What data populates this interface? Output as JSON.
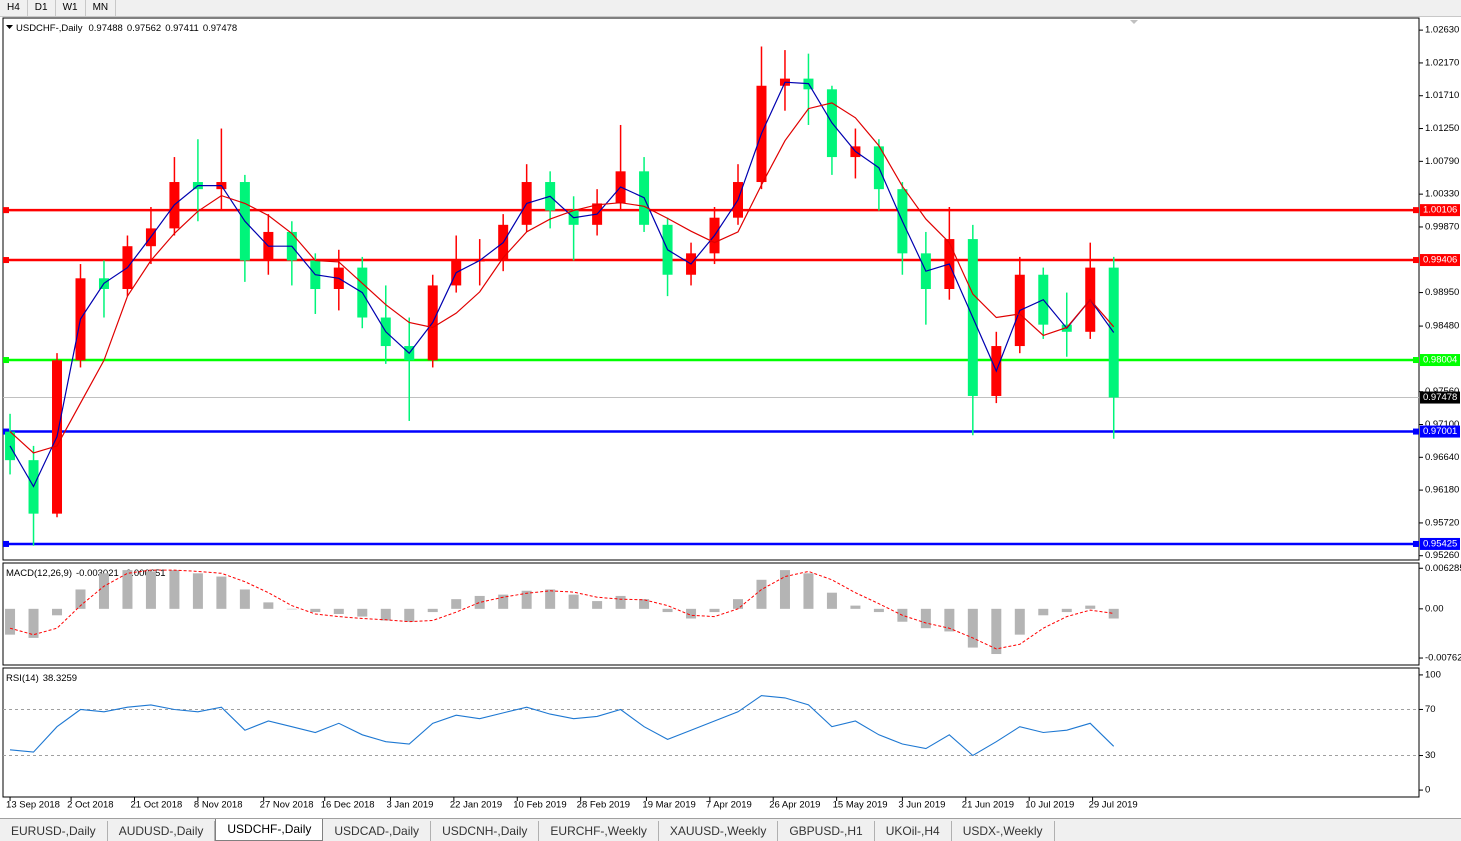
{
  "toolbar": [
    "H4",
    "D1",
    "W1",
    "MN"
  ],
  "symbol_tabs": [
    "EURUSD-,Daily",
    "AUDUSD-,Daily",
    "USDCHF-,Daily",
    "USDCAD-,Daily",
    "USDCNH-,Daily",
    "EURCHF-,Weekly",
    "XAUUSD-,Weekly",
    "GBPUSD-,H1",
    "UKOil-,H4",
    "USDX-,Weekly"
  ],
  "active_tab": 2,
  "chart_data": [
    {
      "type": "candlestick",
      "title": "USDCHF-,Daily",
      "header_values": [
        0.97488,
        0.97562,
        0.97411,
        0.97478
      ],
      "up_color": "#ff0000",
      "down_color": "#00f57a",
      "open": [
        0.97,
        0.966,
        0.9585,
        0.98,
        0.9915,
        0.99,
        0.996,
        0.9985,
        1.005,
        1.004,
        1.005,
        0.994,
        0.998,
        0.994,
        0.99,
        0.993,
        0.986,
        0.982,
        0.98,
        0.9905,
        0.994,
        0.994,
        0.999,
        1.005,
        1.001,
        0.999,
        1.002,
        1.0065,
        0.999,
        0.992,
        0.995,
        1.0,
        1.005,
        1.0185,
        1.0195,
        1.018,
        1.0085,
        1.01,
        1.004,
        0.995,
        0.99,
        0.997,
        0.975,
        0.982,
        0.992,
        0.985,
        0.984,
        0.993
      ],
      "high": [
        0.9725,
        0.968,
        0.981,
        0.9935,
        0.994,
        0.9975,
        1.0015,
        1.0085,
        1.011,
        1.0125,
        1.006,
        1.0005,
        0.9995,
        0.995,
        0.9955,
        0.9945,
        0.9905,
        0.986,
        0.992,
        0.9975,
        0.997,
        1.0005,
        1.0075,
        1.0065,
        1.003,
        1.004,
        1.013,
        1.0085,
        1.0,
        0.9965,
        1.0015,
        1.0075,
        1.024,
        1.0235,
        1.023,
        1.0185,
        1.0125,
        1.011,
        1.005,
        0.998,
        1.0015,
        0.999,
        0.984,
        0.9945,
        0.993,
        0.9895,
        0.9965,
        0.9945
      ],
      "low": [
        0.964,
        0.954,
        0.958,
        0.979,
        0.986,
        0.989,
        0.9935,
        0.9975,
        0.9995,
        1.001,
        0.991,
        0.992,
        0.9905,
        0.9865,
        0.987,
        0.9845,
        0.9795,
        0.9715,
        0.979,
        0.9895,
        0.9905,
        0.9925,
        0.998,
        0.9985,
        0.994,
        0.9975,
        1.001,
        0.998,
        0.989,
        0.9905,
        0.9935,
        0.999,
        1.004,
        1.015,
        1.013,
        1.006,
        1.0055,
        1.001,
        0.992,
        0.985,
        0.9885,
        0.9695,
        0.974,
        0.981,
        0.983,
        0.9805,
        0.983,
        0.969
      ],
      "close": [
        0.966,
        0.9585,
        0.98,
        0.9915,
        0.99,
        0.996,
        0.9985,
        1.005,
        1.004,
        1.005,
        0.994,
        0.998,
        0.994,
        0.99,
        0.993,
        0.986,
        0.982,
        0.98,
        0.9905,
        0.994,
        0.994,
        0.999,
        1.005,
        1.001,
        0.999,
        1.002,
        1.0065,
        0.999,
        0.992,
        0.995,
        1.0,
        1.005,
        1.0185,
        1.0195,
        1.018,
        1.0085,
        1.01,
        1.004,
        0.995,
        0.99,
        0.997,
        0.975,
        0.982,
        0.992,
        0.985,
        0.984,
        0.993,
        0.97478
      ],
      "lines": [
        {
          "color": "#0000b0",
          "values": [
            0.968,
            0.9623,
            0.9693,
            0.9858,
            0.9908,
            0.993,
            0.9973,
            1.0018,
            1.0045,
            1.0045,
            0.9995,
            0.996,
            0.996,
            0.992,
            0.9915,
            0.9895,
            0.984,
            0.981,
            0.9853,
            0.9923,
            0.994,
            0.9965,
            1.002,
            1.003,
            1.0,
            1.0005,
            1.0043,
            1.0028,
            0.9955,
            0.9935,
            0.9975,
            1.0025,
            1.0118,
            1.019,
            1.0188,
            1.0133,
            1.0093,
            1.007,
            0.9995,
            0.9925,
            0.9935,
            0.986,
            0.9785,
            0.987,
            0.9885,
            0.9845,
            0.9885,
            0.9839
          ]
        },
        {
          "color": "#e00000",
          "values": [
            0.97,
            0.967,
            0.968,
            0.974,
            0.98,
            0.989,
            0.994,
            0.9978,
            1.0009,
            1.0031,
            1.002,
            1.0003,
            0.9978,
            0.994,
            0.9938,
            0.9908,
            0.9878,
            0.9853,
            0.9846,
            0.9866,
            0.9896,
            0.9944,
            0.998,
            0.9998,
            1.001,
            1.0018,
            1.0021,
            1.0016,
            0.9999,
            0.9981,
            0.9965,
            0.998,
            1.0046,
            1.0108,
            1.0153,
            1.0161,
            1.014,
            1.0101,
            1.0044,
            0.9998,
            0.9965,
            0.9893,
            0.986,
            0.9865,
            0.9835,
            0.9846,
            0.9885,
            0.9847
          ]
        }
      ],
      "levels": [
        {
          "value": 1.00106,
          "color": "#ff0000"
        },
        {
          "value": 0.99406,
          "color": "#ff0000"
        },
        {
          "value": 0.98004,
          "color": "#00ff00"
        },
        {
          "value": 0.97001,
          "color": "#0000ff"
        },
        {
          "value": 0.95425,
          "color": "#0000ff"
        }
      ],
      "last_price": 0.97478,
      "ylim": [
        0.952,
        1.028
      ],
      "yticks": [
        {
          "value": 1.0263,
          "label": "1.02630"
        },
        {
          "value": 1.0217,
          "label": "1.02170"
        },
        {
          "value": 1.0171,
          "label": "1.01710"
        },
        {
          "value": 1.0125,
          "label": "1.01250"
        },
        {
          "value": 1.0079,
          "label": "1.00790"
        },
        {
          "value": 1.0033,
          "label": "1.00330"
        },
        {
          "value": 0.9987,
          "label": "0.99870"
        },
        {
          "value": 0.9895,
          "label": "0.98950"
        },
        {
          "value": 0.9848,
          "label": "0.98480"
        },
        {
          "value": 0.9756,
          "label": "0.97560"
        },
        {
          "value": 0.971,
          "label": "0.97100"
        },
        {
          "value": 0.9664,
          "label": "0.96640"
        },
        {
          "value": 0.9618,
          "label": "0.96180"
        },
        {
          "value": 0.9572,
          "label": "0.95720"
        },
        {
          "value": 0.9526,
          "label": "0.95260"
        }
      ],
      "xlim": [
        -0.3,
        60
      ],
      "xticks": [
        {
          "value": 0,
          "label": "13 Sep 2018"
        },
        {
          "value": 2.6,
          "label": "2 Oct 2018"
        },
        {
          "value": 5.3,
          "label": "21 Oct 2018"
        },
        {
          "value": 8.0,
          "label": "8 Nov 2018"
        },
        {
          "value": 10.8,
          "label": "27 Nov 2018"
        },
        {
          "value": 13.4,
          "label": "16 Dec 2018"
        },
        {
          "value": 16.2,
          "label": "3 Jan 2019"
        },
        {
          "value": 18.9,
          "label": "22 Jan 2019"
        },
        {
          "value": 21.6,
          "label": "10 Feb 2019"
        },
        {
          "value": 24.3,
          "label": "28 Feb 2019"
        },
        {
          "value": 27.1,
          "label": "19 Mar 2019"
        },
        {
          "value": 29.8,
          "label": "7 Apr 2019"
        },
        {
          "value": 32.5,
          "label": "26 Apr 2019"
        },
        {
          "value": 35.2,
          "label": "15 May 2019"
        },
        {
          "value": 38.0,
          "label": "3 Jun 2019"
        },
        {
          "value": 40.7,
          "label": "21 Jun 2019"
        },
        {
          "value": 43.4,
          "label": "10 Jul 2019"
        },
        {
          "value": 46.1,
          "label": "29 Jul 2019"
        }
      ]
    },
    {
      "type": "macd",
      "title": "MACD(12,26,9)",
      "header_values": [
        -0.003021,
        -0.000651
      ],
      "histogram_color": "#b4b4b4",
      "signal_color": "#ff0000",
      "histogram": [
        -0.004,
        -0.0045,
        -0.001,
        0.003,
        0.0055,
        0.006,
        0.0058,
        0.006,
        0.0055,
        0.005,
        0.003,
        0.001,
        0.0,
        -0.0005,
        -0.0008,
        -0.0012,
        -0.0018,
        -0.002,
        -0.0005,
        0.0015,
        0.002,
        0.0022,
        0.0028,
        0.003,
        0.0022,
        0.0012,
        0.002,
        0.0015,
        -0.0005,
        -0.0015,
        -0.0005,
        0.0015,
        0.0045,
        0.006,
        0.0055,
        0.0025,
        0.0005,
        -0.0005,
        -0.002,
        -0.003,
        -0.0035,
        -0.006,
        -0.007,
        -0.004,
        -0.001,
        -0.0005,
        0.0005,
        -0.0015
      ],
      "signal": [
        -0.003,
        -0.004,
        -0.003,
        0.0005,
        0.0035,
        0.0055,
        0.006,
        0.006,
        0.0058,
        0.0055,
        0.0042,
        0.0025,
        0.0005,
        -0.0008,
        -0.0012,
        -0.0015,
        -0.0017,
        -0.002,
        -0.0018,
        -0.0005,
        0.001,
        0.0018,
        0.0024,
        0.0028,
        0.0026,
        0.0018,
        0.0015,
        0.0014,
        0.0005,
        -0.001,
        -0.0012,
        0.0,
        0.003,
        0.005,
        0.0058,
        0.0045,
        0.0025,
        0.0008,
        -0.001,
        -0.0022,
        -0.003,
        -0.0045,
        -0.0062,
        -0.0055,
        -0.003,
        -0.0012,
        -0.0002,
        -0.0007
      ],
      "ylim": [
        -0.0087,
        0.0071
      ],
      "yticks": [
        0.006285,
        {
          "value": 0,
          "label": "0.00"
        },
        -0.00762
      ]
    },
    {
      "type": "rsi",
      "title": "RSI(14)",
      "header_values": [
        38.3259
      ],
      "color": "#1e78d2",
      "values": [
        35,
        33,
        55,
        70,
        68,
        72,
        74,
        70,
        68,
        72,
        52,
        60,
        55,
        50,
        58,
        48,
        42,
        40,
        58,
        65,
        62,
        67,
        72,
        66,
        62,
        64,
        70,
        55,
        44,
        52,
        60,
        68,
        82,
        80,
        74,
        55,
        60,
        48,
        40,
        36,
        48,
        30,
        42,
        55,
        50,
        52,
        58,
        38
      ],
      "levels": [
        70,
        30
      ],
      "ylim": [
        -6,
        106
      ],
      "yticks": [
        100,
        70,
        30,
        0
      ]
    }
  ]
}
